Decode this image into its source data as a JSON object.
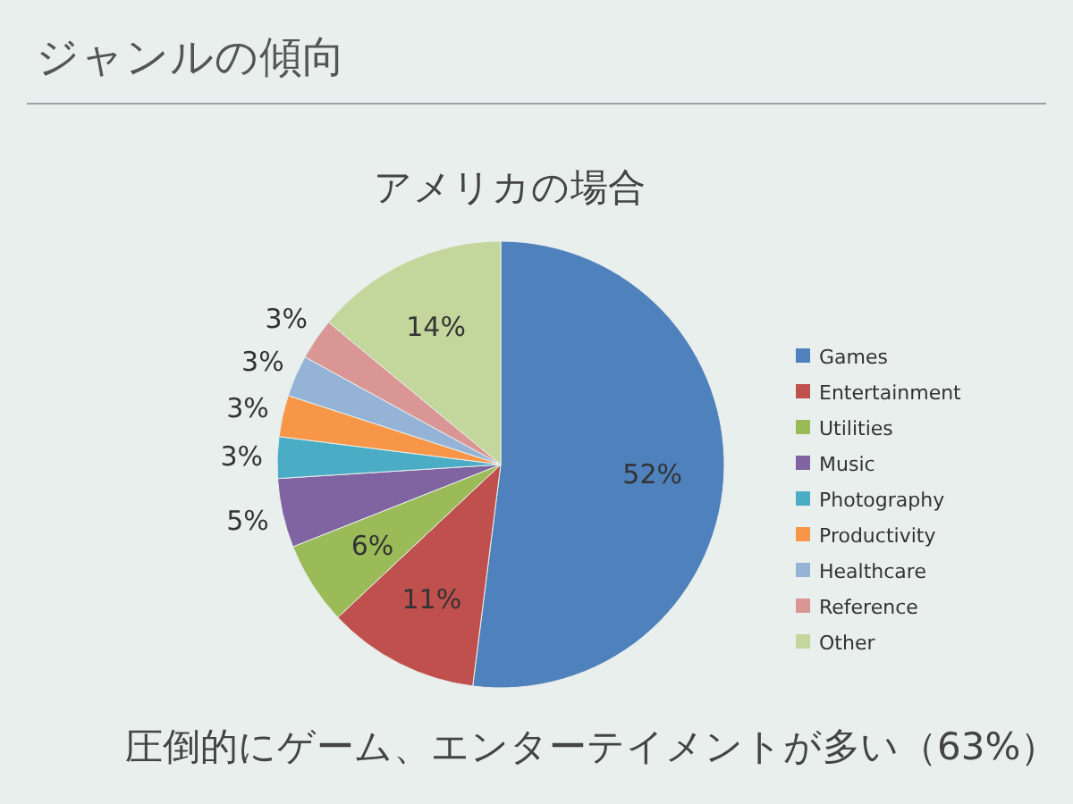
{
  "chart_data": {
    "type": "pie",
    "title": "ジャンルの傾向",
    "subtitle": "アメリカの場合",
    "categories": [
      "Games",
      "Entertainment",
      "Utilities",
      "Music",
      "Photography",
      "Productivity",
      "Healthcare",
      "Reference",
      "Other"
    ],
    "values": [
      52,
      11,
      6,
      5,
      3,
      3,
      3,
      3,
      14
    ],
    "colors": [
      "#4f81bd",
      "#c0504d",
      "#9bbb59",
      "#8064a2",
      "#4bacc6",
      "#f79646",
      "#95b3d7",
      "#d99694",
      "#c3d69b"
    ],
    "value_labels": [
      "52%",
      "11%",
      "6%",
      "5%",
      "3%",
      "3%",
      "3%",
      "3%",
      "14%"
    ],
    "legend": "right",
    "annotations": [
      "圧倒的にゲーム、エンターテイメントが多い（63%）"
    ]
  }
}
